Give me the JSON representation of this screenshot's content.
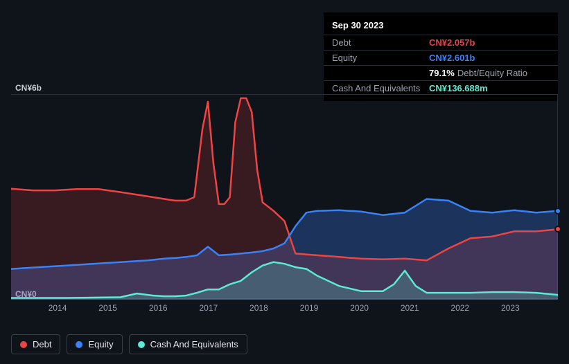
{
  "chart": {
    "type": "area-line",
    "background_color": "#0f131a",
    "plot_border_color": "#2a2f38",
    "y_axis": {
      "top_label": "CN¥6b",
      "bottom_label": "CN¥0",
      "min": 0,
      "max": 6,
      "label_color": "#c8cdd6",
      "label_fontsize": 12
    },
    "x_axis": {
      "years": [
        "2014",
        "2015",
        "2016",
        "2017",
        "2018",
        "2019",
        "2020",
        "2021",
        "2022",
        "2023"
      ],
      "positions_pct": [
        8.5,
        17.7,
        26.9,
        36.1,
        45.3,
        54.5,
        63.7,
        72.9,
        82.1,
        91.3
      ],
      "label_color": "#9ca3af",
      "label_fontsize": 12
    },
    "series": {
      "debt": {
        "label": "Debt",
        "color": "#ef4444",
        "fill": "rgba(239,68,68,0.18)",
        "stroke_width": 2.5,
        "xs_pct": [
          0,
          4,
          8,
          12,
          16,
          20,
          24,
          28,
          30,
          32,
          33.5,
          35,
          36,
          37,
          38,
          39,
          40,
          41,
          42,
          43,
          44,
          45,
          46,
          48,
          50,
          52,
          56,
          60,
          64,
          68,
          72,
          76,
          80,
          84,
          88,
          92,
          96,
          100
        ],
        "ys_val": [
          3.25,
          3.2,
          3.2,
          3.24,
          3.24,
          3.15,
          3.05,
          2.95,
          2.9,
          2.9,
          3.0,
          5.0,
          5.8,
          4.0,
          2.8,
          2.8,
          3.0,
          5.2,
          5.9,
          5.9,
          5.5,
          3.8,
          2.85,
          2.6,
          2.3,
          1.35,
          1.3,
          1.25,
          1.2,
          1.18,
          1.2,
          1.15,
          1.5,
          1.8,
          1.85,
          2.0,
          2.0,
          2.06
        ]
      },
      "equity": {
        "label": "Equity",
        "color": "#3b82f6",
        "fill": "rgba(59,130,246,0.30)",
        "stroke_width": 2.5,
        "xs_pct": [
          0,
          5,
          10,
          15,
          20,
          25,
          28,
          30,
          32,
          34,
          36,
          38,
          40,
          42,
          44,
          46,
          48,
          50,
          52,
          54,
          56,
          60,
          64,
          68,
          72,
          76,
          80,
          84,
          88,
          92,
          96,
          100
        ],
        "ys_val": [
          0.9,
          0.95,
          1.0,
          1.05,
          1.1,
          1.15,
          1.2,
          1.22,
          1.25,
          1.3,
          1.55,
          1.3,
          1.32,
          1.35,
          1.38,
          1.42,
          1.5,
          1.65,
          2.15,
          2.55,
          2.6,
          2.62,
          2.58,
          2.48,
          2.55,
          2.95,
          2.9,
          2.6,
          2.55,
          2.62,
          2.55,
          2.6
        ]
      },
      "cash": {
        "label": "Cash And Equivalents",
        "color": "#5eead4",
        "fill": "rgba(94,234,212,0.22)",
        "stroke_width": 2.5,
        "xs_pct": [
          0,
          5,
          10,
          15,
          20,
          23,
          26,
          28,
          30,
          32,
          34,
          36,
          38,
          40,
          42,
          44,
          46,
          48,
          50,
          52,
          54,
          56,
          58,
          60,
          64,
          68,
          70,
          72,
          74,
          76,
          80,
          84,
          88,
          92,
          96,
          100
        ],
        "ys_val": [
          0.05,
          0.05,
          0.05,
          0.06,
          0.07,
          0.18,
          0.12,
          0.1,
          0.1,
          0.12,
          0.2,
          0.3,
          0.3,
          0.45,
          0.55,
          0.8,
          1.0,
          1.1,
          1.05,
          0.95,
          0.9,
          0.7,
          0.55,
          0.4,
          0.25,
          0.25,
          0.45,
          0.85,
          0.4,
          0.2,
          0.2,
          0.2,
          0.22,
          0.22,
          0.2,
          0.14
        ]
      }
    },
    "edge_markers": [
      {
        "series": "debt",
        "y_val": 2.06,
        "color": "#ef4444"
      },
      {
        "series": "equity",
        "y_val": 2.6,
        "color": "#3b82f6"
      }
    ]
  },
  "tooltip": {
    "date": "Sep 30 2023",
    "rows": [
      {
        "label": "Debt",
        "value": "CN¥2.057b",
        "class": "debt"
      },
      {
        "label": "Equity",
        "value": "CN¥2.601b",
        "class": "equity"
      },
      {
        "label_blank": true,
        "pct": "79.1%",
        "suffix": "Debt/Equity Ratio"
      },
      {
        "label": "Cash And Equivalents",
        "value": "CN¥136.688m",
        "class": "cash"
      }
    ]
  },
  "legend": {
    "items": [
      {
        "label": "Debt",
        "color": "#ef4444"
      },
      {
        "label": "Equity",
        "color": "#3b82f6"
      },
      {
        "label": "Cash And Equivalents",
        "color": "#5eead4"
      }
    ]
  }
}
